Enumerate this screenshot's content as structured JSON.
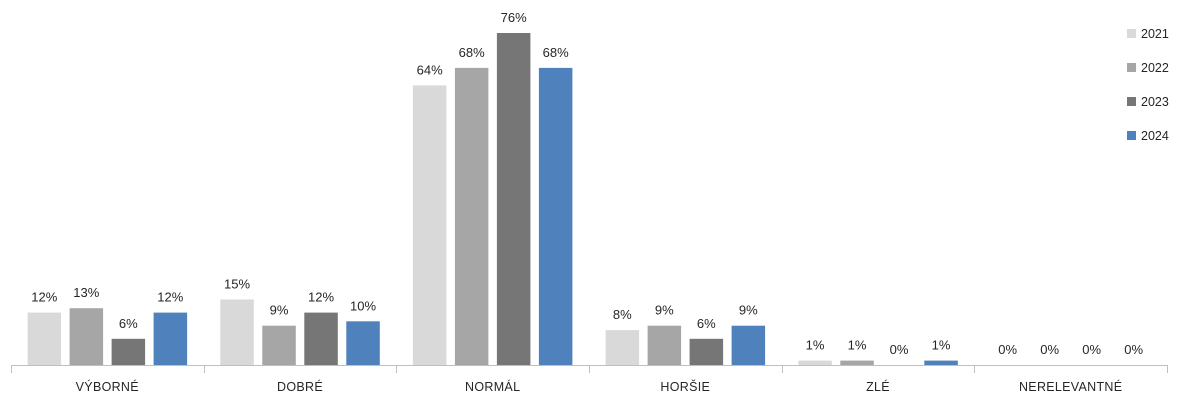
{
  "chart_data": {
    "type": "bar",
    "categories": [
      "VÝBORNÉ",
      "DOBRÉ",
      "NORMÁL",
      "HORŠIE",
      "ZLÉ",
      "NERELEVANTNÉ"
    ],
    "series": [
      {
        "name": "2021",
        "color": "#d9d9d9",
        "values": [
          12,
          15,
          64,
          8,
          1,
          0
        ],
        "labels": [
          "12%",
          "15%",
          "64%",
          "8%",
          "1%",
          "0%"
        ]
      },
      {
        "name": "2022",
        "color": "#a6a6a6",
        "values": [
          13,
          9,
          68,
          9,
          1,
          0
        ],
        "labels": [
          "13%",
          "9%",
          "68%",
          "9%",
          "1%",
          "0%"
        ]
      },
      {
        "name": "2023",
        "color": "#767676",
        "values": [
          6,
          12,
          76,
          6,
          0,
          0
        ],
        "labels": [
          "6%",
          "12%",
          "76%",
          "6%",
          "0%",
          "0%"
        ]
      },
      {
        "name": "2024",
        "color": "#4f81bd",
        "values": [
          12,
          10,
          68,
          9,
          1,
          0
        ],
        "labels": [
          "12%",
          "10%",
          "68%",
          "9%",
          "1%",
          "0%"
        ]
      }
    ],
    "ylim": [
      0,
      76
    ],
    "grid": false,
    "legend_position": "right"
  }
}
